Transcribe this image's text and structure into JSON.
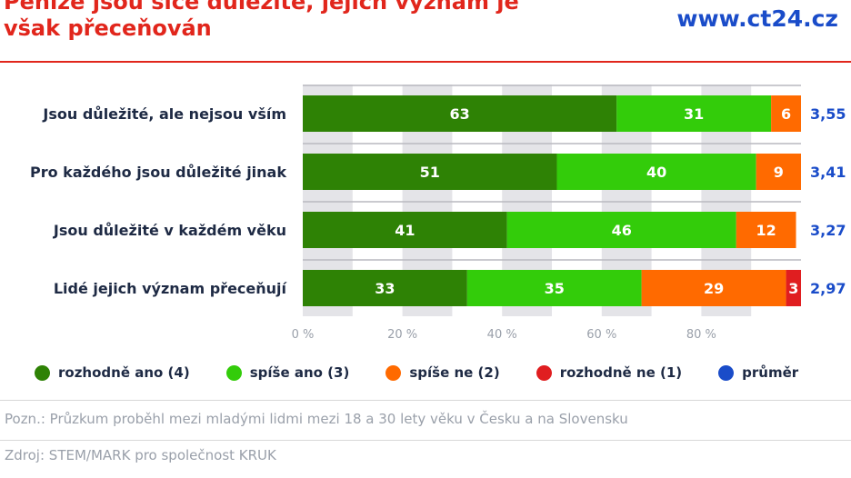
{
  "header": {
    "title": "Peníze jsou sice důležité, jejich význam je však přeceňován",
    "brand": "www.ct24.cz"
  },
  "colors": {
    "title": "#e1261c",
    "brand": "#1a4cc9",
    "rozhodne_ano": "#2e8205",
    "spise_ano": "#33cc0a",
    "spise_ne": "#ff6a00",
    "rozhodne_ne": "#e01e20",
    "prumer": "#1a4cc9",
    "gridband": "#e4e4e8"
  },
  "chart_data": {
    "type": "bar",
    "orientation": "horizontal",
    "stacked": true,
    "categories": [
      "Jsou důležité, ale nejsou vším",
      "Pro každého jsou důležité jinak",
      "Jsou důležité v každém věku",
      "Lidé jejich význam přeceňují"
    ],
    "series": [
      {
        "name": "rozhodně ano (4)",
        "color": "#2e8205",
        "values": [
          63,
          51,
          41,
          33
        ]
      },
      {
        "name": "spíše ano (3)",
        "color": "#33cc0a",
        "values": [
          31,
          40,
          46,
          35
        ]
      },
      {
        "name": "spíše ne (2)",
        "color": "#ff6a00",
        "values": [
          6,
          9,
          12,
          29
        ]
      },
      {
        "name": "rozhodně ne (1)",
        "color": "#e01e20",
        "values": [
          0,
          0,
          0,
          3
        ]
      }
    ],
    "averages": {
      "name": "průměr",
      "color": "#1a4cc9",
      "values": [
        "3,55",
        "3,41",
        "3,27",
        "2,97"
      ]
    },
    "xlim": [
      0,
      100
    ],
    "xticks": [
      0,
      20,
      40,
      60,
      80
    ],
    "xtick_labels": [
      "0 %",
      "20 %",
      "40 %",
      "60 %",
      "80 %"
    ],
    "legend_position": "bottom",
    "grid": "alternating vertical bands"
  },
  "legend": [
    {
      "label": "rozhodně ano (4)",
      "color": "#2e8205"
    },
    {
      "label": "spíše ano (3)",
      "color": "#33cc0a"
    },
    {
      "label": "spíše ne (2)",
      "color": "#ff6a00"
    },
    {
      "label": "rozhodně ne (1)",
      "color": "#e01e20"
    },
    {
      "label": "průměr",
      "color": "#1a4cc9"
    }
  ],
  "footer": {
    "note": "Pozn.: Průzkum proběhl mezi mladými lidmi mezi 18 a 30 lety věku v Česku a na Slovensku",
    "source": "Zdroj: STEM/MARK pro společnost KRUK"
  }
}
